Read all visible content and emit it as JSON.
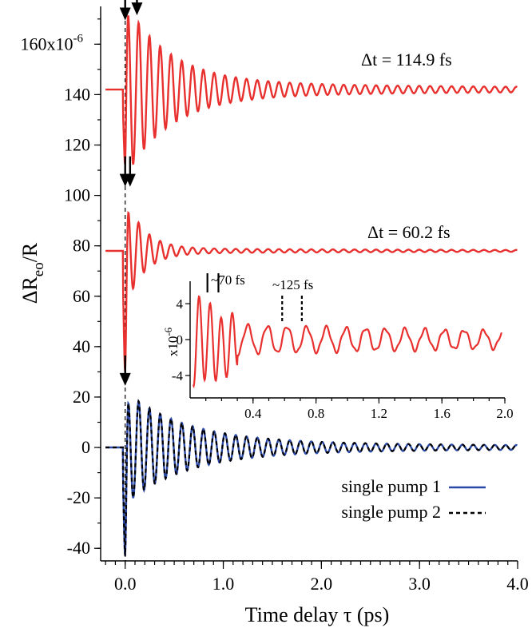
{
  "chart_data": {
    "type": "line",
    "xlabel": "Time delay τ (ps)",
    "ylabel_main": "ΔR",
    "ylabel_sub": "eo",
    "ylabel_tail": "/R",
    "xlim": [
      -0.25,
      4.0
    ],
    "ylim": [
      -45,
      175
    ],
    "x_ticks": [
      {
        "value": 0.0,
        "label": "0.0"
      },
      {
        "value": 1.0,
        "label": "1.0"
      },
      {
        "value": 2.0,
        "label": "2.0"
      },
      {
        "value": 3.0,
        "label": "3.0"
      },
      {
        "value": 4.0,
        "label": "4.0"
      }
    ],
    "y_ticks": [
      {
        "value": -40,
        "label": "-40"
      },
      {
        "value": -20,
        "label": "-20"
      },
      {
        "value": 0,
        "label": "0"
      },
      {
        "value": 20,
        "label": "20"
      },
      {
        "value": 40,
        "label": "40"
      },
      {
        "value": 60,
        "label": "60"
      },
      {
        "value": 80,
        "label": "80"
      },
      {
        "value": 100,
        "label": "100"
      },
      {
        "value": 120,
        "label": "120"
      },
      {
        "value": 140,
        "label": "140"
      }
    ],
    "y_top_label": {
      "value": 160,
      "label": "160x10",
      "exponent": "-6"
    },
    "colors": {
      "red": "#e8312f",
      "blue": "#2b4aa8",
      "black": "#000000"
    },
    "traces": [
      {
        "id": "dt114",
        "label": "Δt = 114.9 fs",
        "offset": 142,
        "period_ps": 0.11,
        "amp": 32,
        "decay_ps": 0.45,
        "tail_amp": 3.0,
        "dip": -30,
        "color": "red"
      },
      {
        "id": "dt60",
        "label": "Δt = 60.2 fs",
        "offset": 78,
        "period_ps": 0.11,
        "amp": 22,
        "decay_ps": 0.18,
        "tail_amp": 1.0,
        "dip": -48,
        "color": "red"
      },
      {
        "id": "sp1",
        "label": "single pump 1",
        "offset": 0,
        "period_ps": 0.11,
        "amp": 20,
        "decay_ps": 0.6,
        "tail_amp": 2.5,
        "dip": -43,
        "color": "blue"
      },
      {
        "id": "sp2",
        "label": "single pump 2",
        "offset": 0,
        "period_ps": 0.11,
        "amp": 20,
        "decay_ps": 0.6,
        "tail_amp": 2.5,
        "dip": -43,
        "color": "black",
        "dashed": true
      }
    ],
    "arrows": [
      {
        "x": 0.0,
        "y": 172
      },
      {
        "x": 0.12,
        "y": 174
      },
      {
        "x": 0.0,
        "y": 106
      },
      {
        "x": 0.05,
        "y": 106
      },
      {
        "x": 0.0,
        "y": 27
      }
    ],
    "inset": {
      "xlim": [
        0.0,
        2.0
      ],
      "ylim": [
        -6.5,
        6.5
      ],
      "x_ticks": [
        {
          "value": 0.4,
          "label": "0.4"
        },
        {
          "value": 0.8,
          "label": "0.8"
        },
        {
          "value": 1.2,
          "label": "1.2"
        },
        {
          "value": 1.6,
          "label": "1.6"
        },
        {
          "value": 2.0,
          "label": "2.0"
        }
      ],
      "y_ticks": [
        {
          "value": -4,
          "label": "-4"
        },
        {
          "value": 0,
          "label": "0"
        },
        {
          "value": 4,
          "label": "4"
        }
      ],
      "ylabel": "x10",
      "ylabel_exp": "-6",
      "annotations": [
        {
          "text": "~70 fs",
          "markers": [
            0.11,
            0.18
          ]
        },
        {
          "text": "~125 fs",
          "markers": [
            0.585,
            0.71
          ]
        }
      ]
    }
  }
}
